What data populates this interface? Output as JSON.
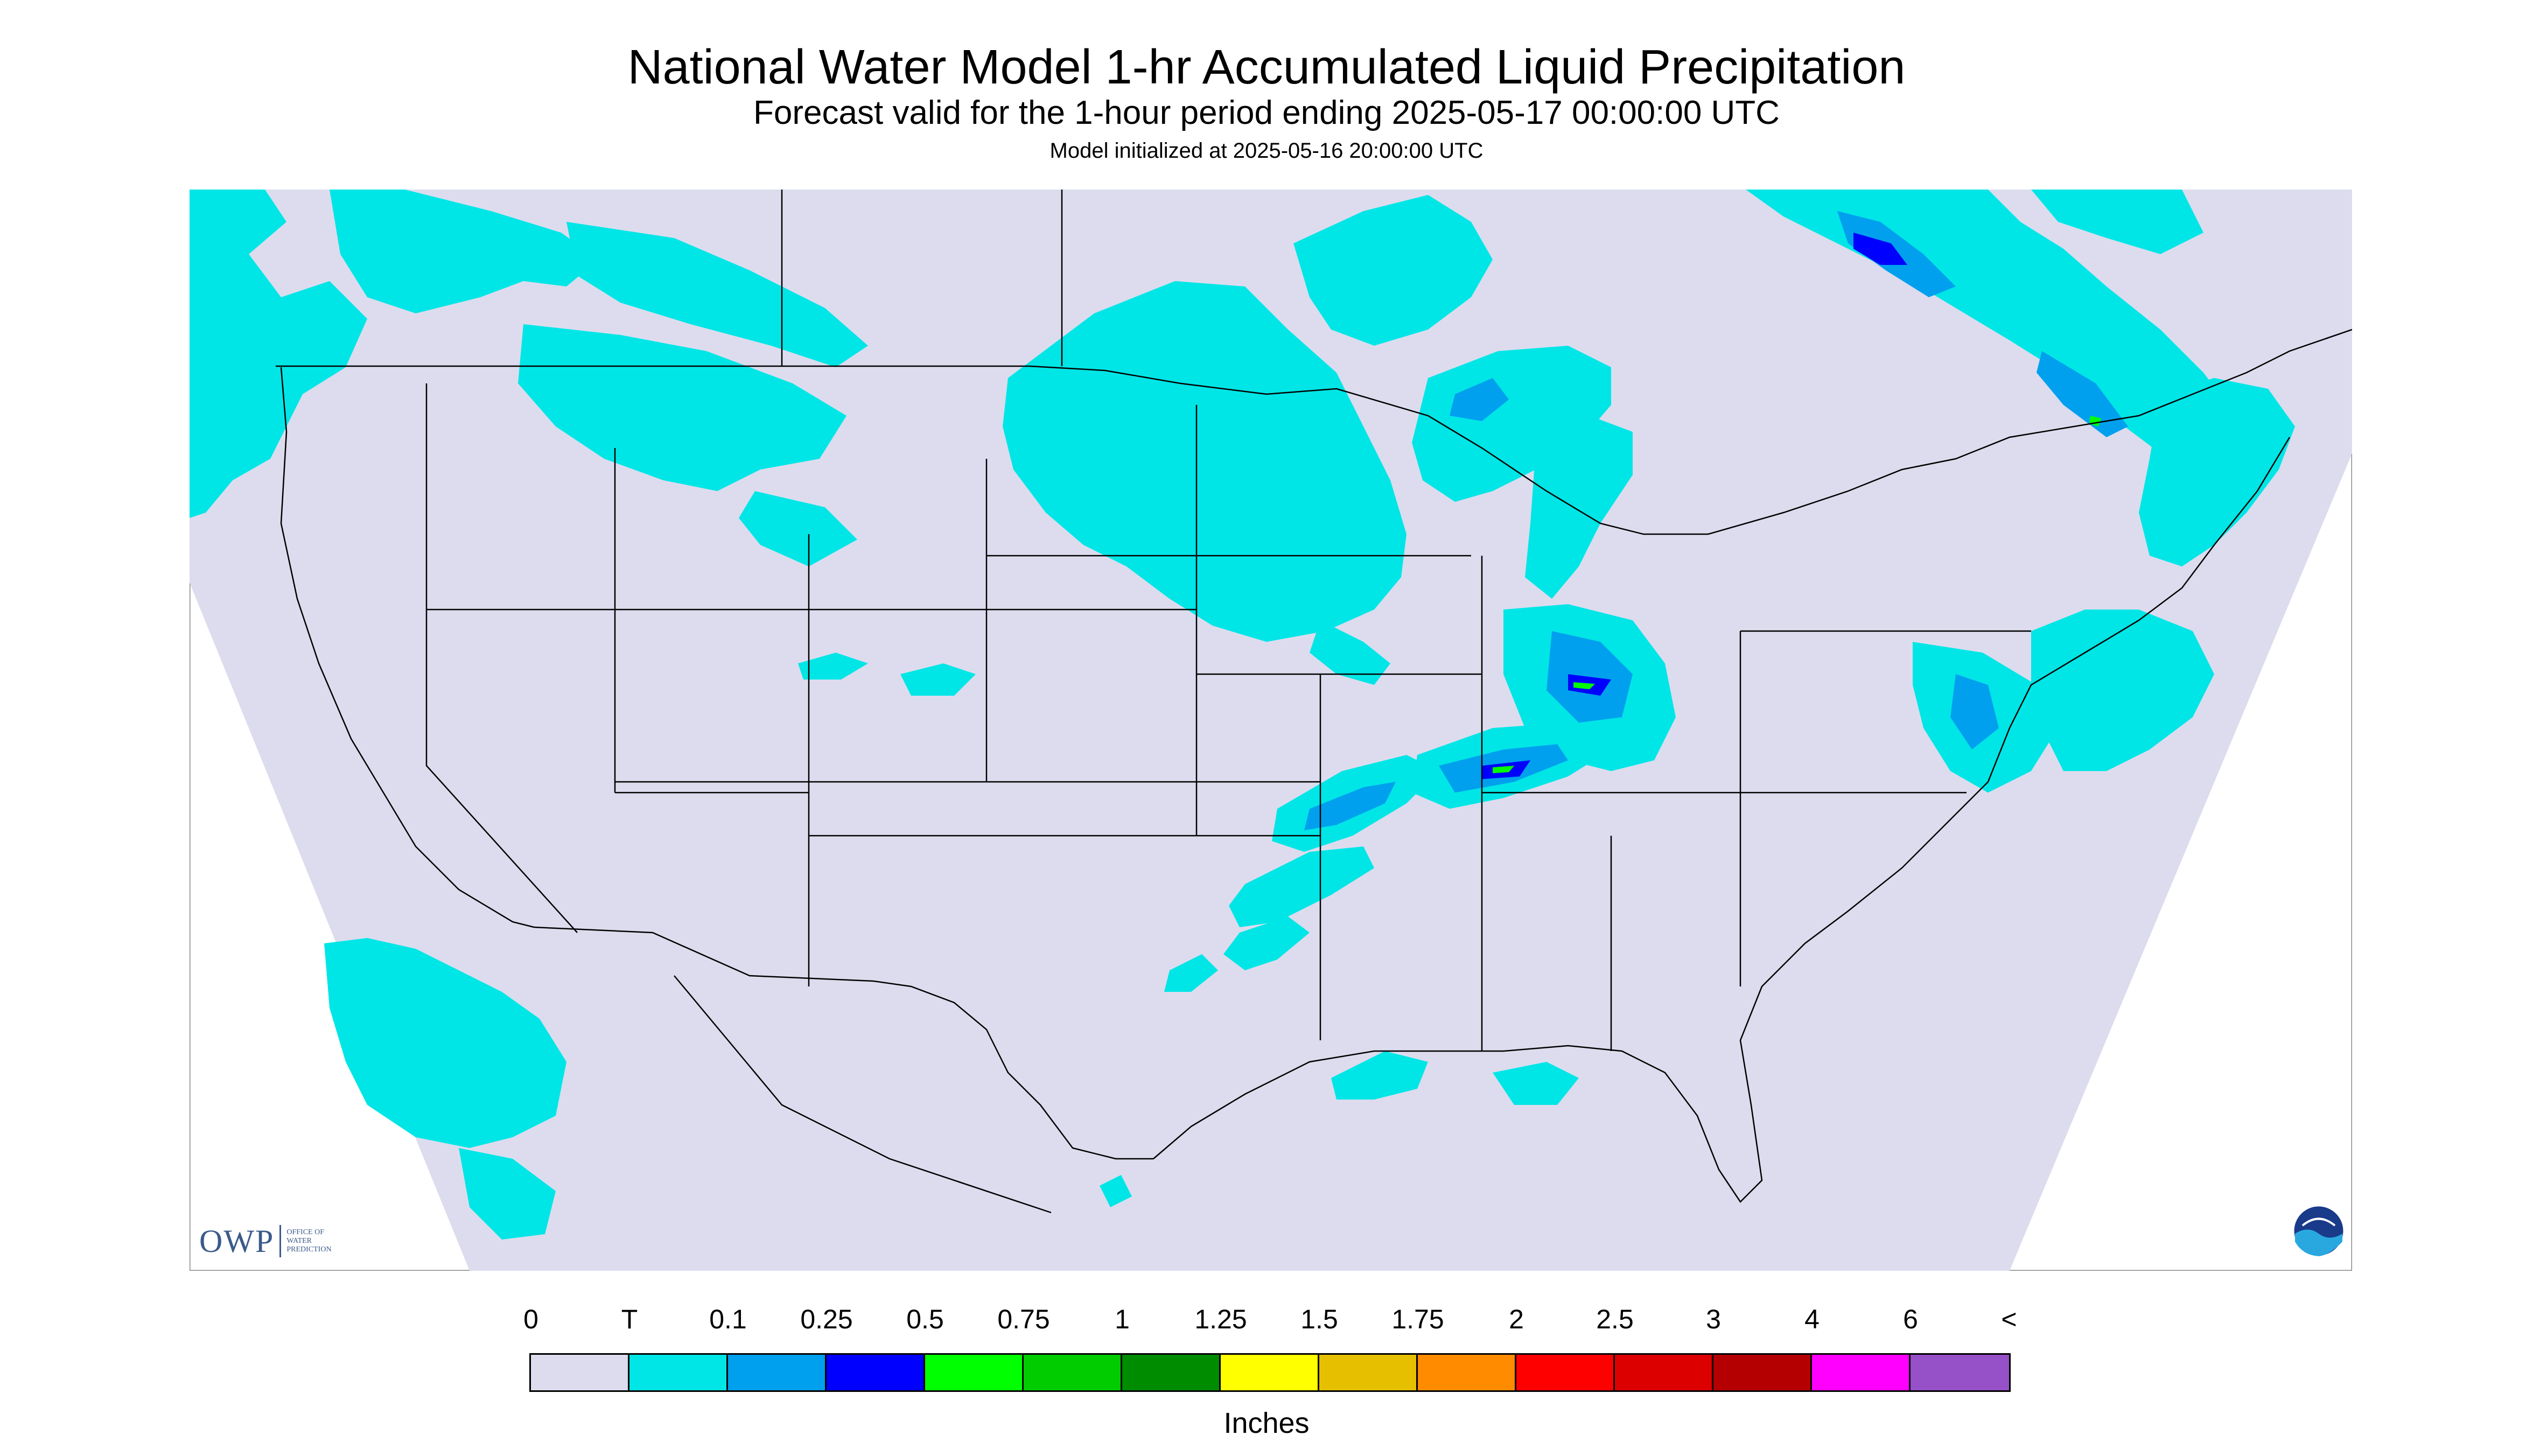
{
  "title": "National Water Model 1-hr Accumulated Liquid Precipitation",
  "subtitle": "Forecast valid for the 1-hour period ending 2025-05-17 00:00:00 UTC",
  "init_line": "Model initialized at 2025-05-16 20:00:00 UTC",
  "colors": {
    "background": "#dcdcee",
    "outside_domain": "#ffffff",
    "trace": "#00e6e6",
    "p01": "#00a0ee",
    "p025": "#0000ff",
    "p05": "#00ff00",
    "border_lines": "#000000"
  },
  "legend": {
    "labels": [
      "0",
      "T",
      "0.1",
      "0.25",
      "0.5",
      "0.75",
      "1",
      "1.25",
      "1.5",
      "1.75",
      "2",
      "2.5",
      "3",
      "4",
      "6",
      "<"
    ],
    "swatches": [
      "#dcdcee",
      "#00e6e6",
      "#00a0ee",
      "#0000ff",
      "#00ff00",
      "#00cc00",
      "#008c00",
      "#ffff00",
      "#e6c000",
      "#ff8c00",
      "#ff0000",
      "#dc0000",
      "#b40000",
      "#ff00ff",
      "#9650c8"
    ],
    "units": "Inches"
  },
  "logos": {
    "owp_mark": "OWP",
    "owp_text": "OFFICE OF WATER PREDICTION",
    "noaa_text": "NOAA"
  },
  "map": {
    "region": "Continental United States with parts of Canada and Mexico",
    "icons": [
      "owp-logo",
      "noaa-logo"
    ]
  }
}
